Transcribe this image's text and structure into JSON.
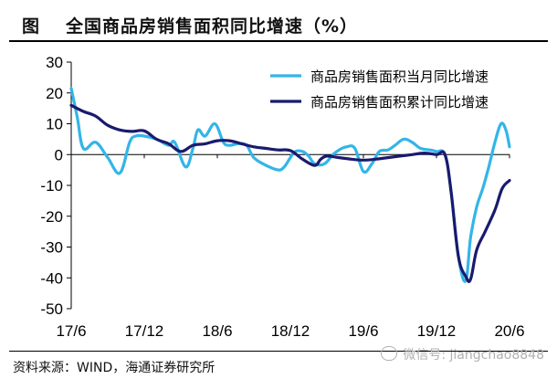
{
  "figure": {
    "label": "图",
    "title": "全国商品房销售面积同比增速（%）",
    "source": "资料来源：WIND，海通证券研究所",
    "watermark": "微信号: jiangchao8848"
  },
  "chart_data": {
    "type": "line",
    "title": "全国商品房销售面积同比增速（%）",
    "xlabel": "",
    "ylabel": "",
    "ylim": [
      -50,
      30
    ],
    "yticks": [
      30,
      20,
      10,
      0,
      -10,
      -20,
      -30,
      -40,
      -50
    ],
    "xlim": [
      0,
      36
    ],
    "xtick_labels": [
      {
        "label": "17/6",
        "x": 0
      },
      {
        "label": "17/12",
        "x": 6
      },
      {
        "label": "18/6",
        "x": 12
      },
      {
        "label": "18/12",
        "x": 18
      },
      {
        "label": "19/6",
        "x": 24
      },
      {
        "label": "19/12",
        "x": 30
      },
      {
        "label": "20/6",
        "x": 36
      }
    ],
    "grid": false,
    "legend_position": "top-right",
    "series": [
      {
        "name": "商品房销售面积当月同比增速",
        "color": "#33b5e8",
        "points": [
          [
            0,
            21.5
          ],
          [
            0.5,
            12
          ],
          [
            1,
            2
          ],
          [
            2,
            4
          ],
          [
            3,
            -1
          ],
          [
            4,
            -6
          ],
          [
            4.8,
            4
          ],
          [
            5.3,
            6
          ],
          [
            6,
            6
          ],
          [
            7,
            5
          ],
          [
            8,
            3
          ],
          [
            8.5,
            4
          ],
          [
            9.4,
            -4
          ],
          [
            10,
            2
          ],
          [
            10.4,
            8
          ],
          [
            11,
            6
          ],
          [
            11.8,
            10
          ],
          [
            12.5,
            4
          ],
          [
            13,
            3
          ],
          [
            13.7,
            3.5
          ],
          [
            14.4,
            3
          ],
          [
            15,
            -1
          ],
          [
            16,
            -3.5
          ],
          [
            17,
            -5
          ],
          [
            17.5,
            -4
          ],
          [
            18,
            -1
          ],
          [
            18.4,
            1
          ],
          [
            19,
            1
          ],
          [
            19.5,
            -0.5
          ],
          [
            20,
            -3
          ],
          [
            20.8,
            -3
          ],
          [
            21.5,
            0
          ],
          [
            22,
            1.5
          ],
          [
            22.6,
            2.5
          ],
          [
            23.3,
            2
          ],
          [
            24,
            -5.5
          ],
          [
            24.7,
            -3
          ],
          [
            25.3,
            1
          ],
          [
            26,
            1.5
          ],
          [
            26.6,
            3
          ],
          [
            27.3,
            5
          ],
          [
            28,
            4
          ],
          [
            28.7,
            2
          ],
          [
            29.5,
            1.5
          ],
          [
            30,
            1
          ],
          [
            30.7,
            0
          ],
          [
            31.2,
            -12
          ],
          [
            31.8,
            -33
          ],
          [
            32.4,
            -41
          ],
          [
            32.8,
            -27
          ],
          [
            33.3,
            -17
          ],
          [
            33.8,
            -11
          ],
          [
            34.3,
            -4
          ],
          [
            34.8,
            4
          ],
          [
            35.3,
            10
          ],
          [
            35.7,
            8
          ],
          [
            36,
            2.5
          ]
        ]
      },
      {
        "name": "商品房销售面积累计同比增速",
        "color": "#1a1a6e",
        "points": [
          [
            0,
            16
          ],
          [
            1,
            14
          ],
          [
            2,
            12.5
          ],
          [
            3,
            9.5
          ],
          [
            4,
            8
          ],
          [
            5,
            7.5
          ],
          [
            6,
            7.7
          ],
          [
            7,
            5
          ],
          [
            8,
            3.5
          ],
          [
            9,
            1
          ],
          [
            10,
            3
          ],
          [
            11,
            3.5
          ],
          [
            12,
            4.5
          ],
          [
            13,
            4.5
          ],
          [
            14,
            3.5
          ],
          [
            15,
            2.5
          ],
          [
            16,
            2
          ],
          [
            17,
            1.5
          ],
          [
            18,
            1.3
          ],
          [
            19,
            -1.5
          ],
          [
            20,
            -3.5
          ],
          [
            20.5,
            -1.5
          ],
          [
            21,
            -0.5
          ],
          [
            22,
            -1
          ],
          [
            23,
            -1.5
          ],
          [
            24,
            -1.8
          ],
          [
            25,
            -1.5
          ],
          [
            26,
            -1
          ],
          [
            27,
            -0.5
          ],
          [
            28,
            0
          ],
          [
            29,
            0.5
          ],
          [
            30,
            0
          ],
          [
            30.7,
            0
          ],
          [
            31.2,
            -12
          ],
          [
            31.8,
            -33
          ],
          [
            32.4,
            -39.5
          ],
          [
            32.8,
            -40.5
          ],
          [
            33.3,
            -31
          ],
          [
            34,
            -25
          ],
          [
            34.8,
            -18
          ],
          [
            35.4,
            -11
          ],
          [
            36,
            -8.4
          ]
        ]
      }
    ]
  }
}
